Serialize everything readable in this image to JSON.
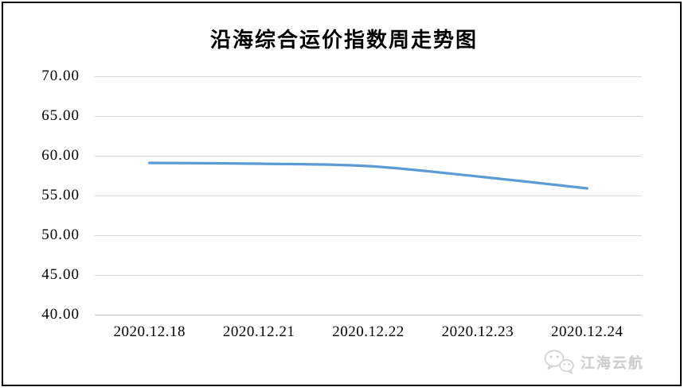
{
  "chart_data": {
    "type": "line",
    "title": "沿海综合运价指数周走势图",
    "categories": [
      "2020.12.18",
      "2020.12.21",
      "2020.12.22",
      "2020.12.23",
      "2020.12.24"
    ],
    "series": [
      {
        "name": "沿海综合运价指数",
        "values": [
          59.1,
          59.0,
          58.7,
          57.4,
          55.9
        ],
        "color": "#5B9BD5"
      }
    ],
    "xlabel": "",
    "ylabel": "",
    "ylim": [
      40,
      70
    ],
    "ytick_step": 5,
    "yticks": [
      "70.00",
      "65.00",
      "60.00",
      "55.00",
      "50.00",
      "45.00",
      "40.00"
    ],
    "grid": true,
    "legend_position": "none",
    "smooth": true,
    "line_width": 3.2,
    "grid_color": "#D9D9D9",
    "axis_color": "#C0C0C0"
  },
  "watermark": {
    "text": "江海云航",
    "icon": "wechat-icon",
    "color": "#CDCDCD"
  },
  "frame": {
    "border_color": "#000000",
    "background": "#FFFFFF"
  }
}
